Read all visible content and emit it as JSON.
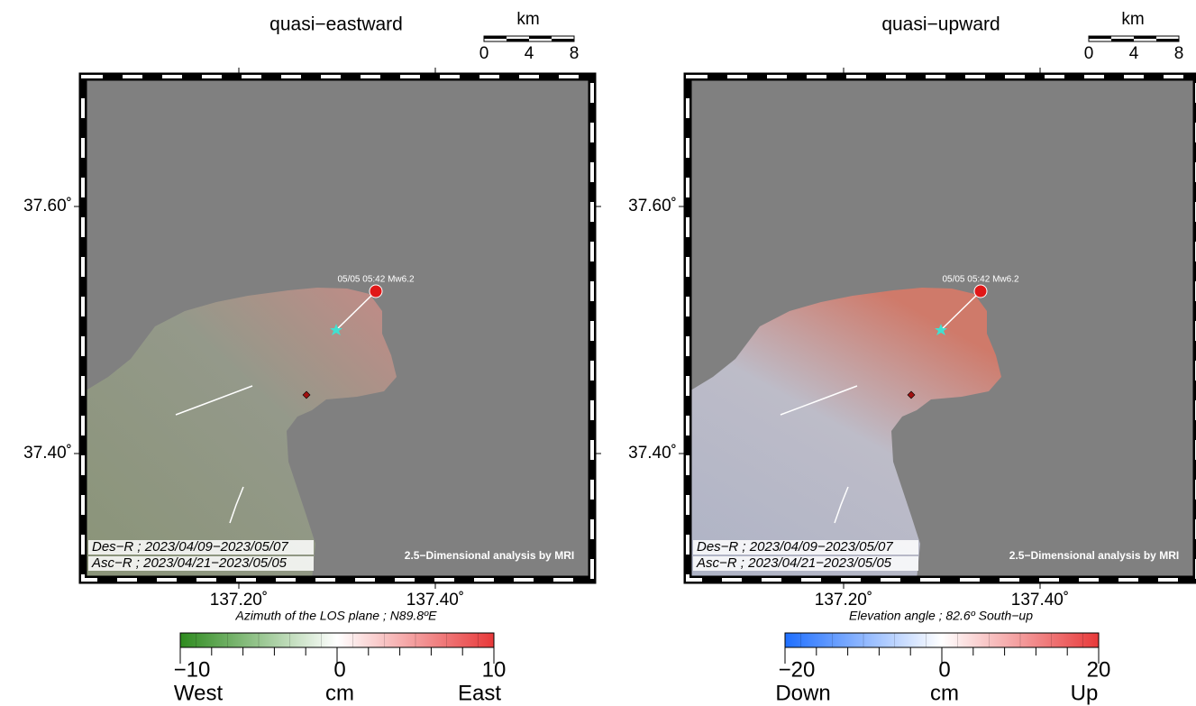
{
  "panels": [
    {
      "title": "quasi−eastward",
      "scale": {
        "unit": "km",
        "ticks": [
          "0",
          "4",
          "8"
        ]
      },
      "lat_labels": [
        "37.60˚",
        "37.40˚"
      ],
      "lon_labels": [
        "137.20˚",
        "137.40˚"
      ],
      "event_label": "05/05 05:42 Mw6.2",
      "datasets": [
        "Des−R ; 2023/04/09−2023/05/07",
        "Asc−R ; 2023/04/21−2023/05/05"
      ],
      "credit": "2.5−Dimensional analysis by MRI",
      "caption": "Azimuth of the LOS plane ; N89.8ºE",
      "colorbar": {
        "min": "−10",
        "mid": "0",
        "max": "10",
        "low_label": "West",
        "unit": "cm",
        "high_label": "East",
        "colors": [
          "#2e8b1e",
          "#ffffff",
          "#e8393a"
        ]
      }
    },
    {
      "title": "quasi−upward",
      "scale": {
        "unit": "km",
        "ticks": [
          "0",
          "4",
          "8"
        ]
      },
      "lat_labels": [
        "37.60˚",
        "37.40˚"
      ],
      "lon_labels": [
        "137.20˚",
        "137.40˚"
      ],
      "event_label": "05/05 05:42 Mw6.2",
      "datasets": [
        "Des−R ; 2023/04/09−2023/05/07",
        "Asc−R ; 2023/04/21−2023/05/05"
      ],
      "credit": "2.5−Dimensional analysis by MRI",
      "caption": "Elevation angle ; 82.6º South−up",
      "colorbar": {
        "min": "−20",
        "mid": "0",
        "max": "20",
        "low_label": "Down",
        "unit": "cm",
        "high_label": "Up",
        "colors": [
          "#1f6fff",
          "#ffffff",
          "#e8393a"
        ]
      }
    }
  ]
}
